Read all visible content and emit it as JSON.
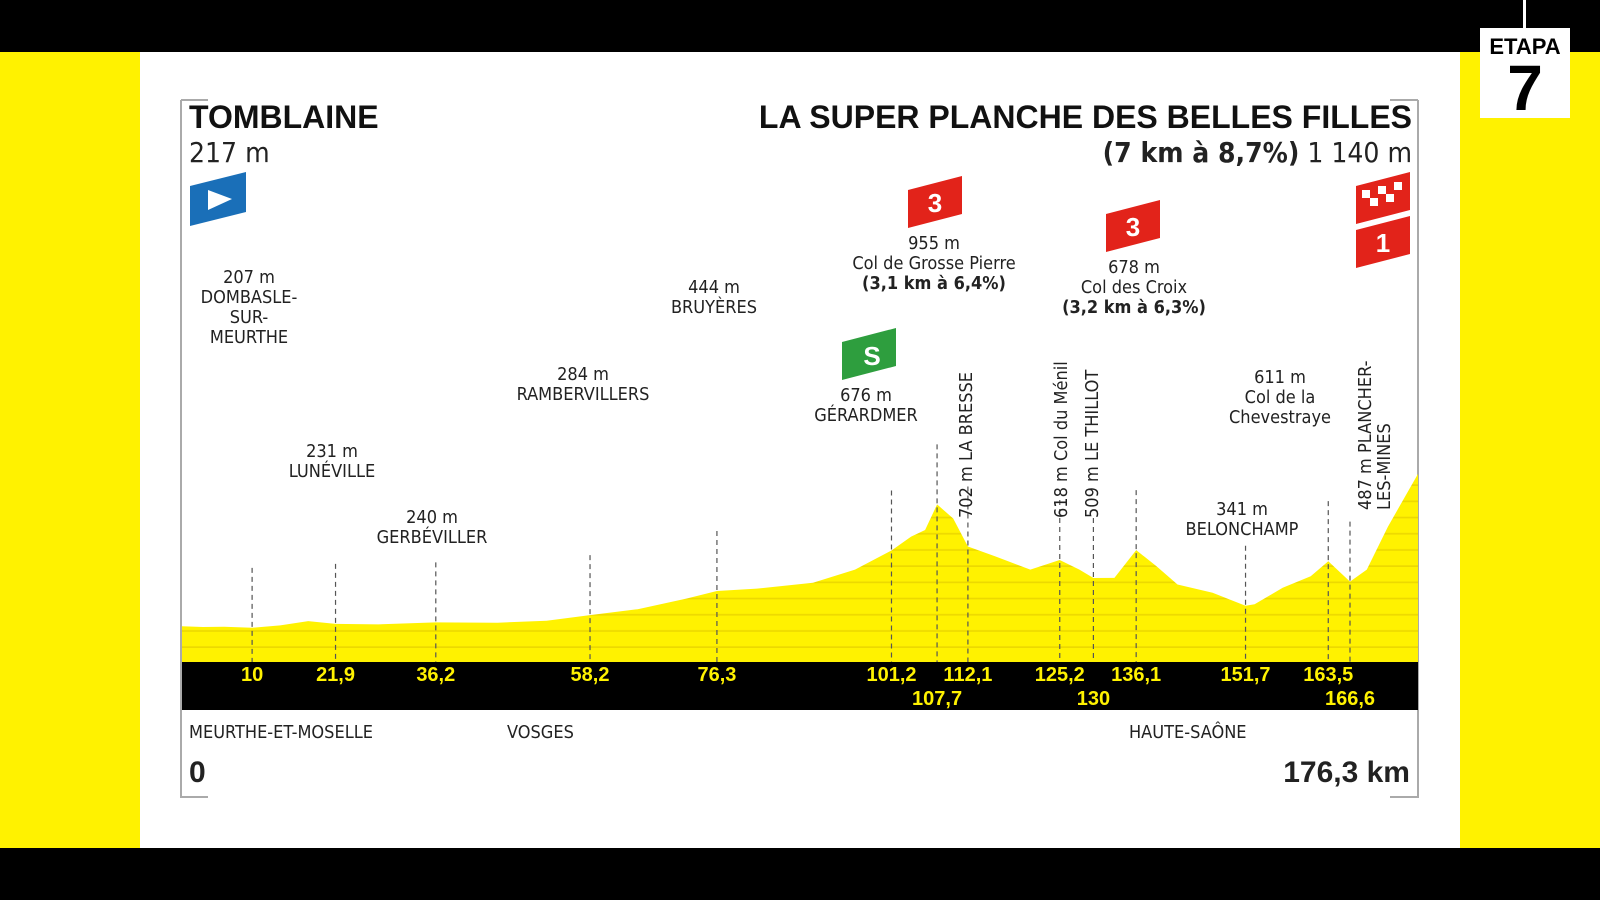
{
  "badge": {
    "label": "ETAPA",
    "number": "7"
  },
  "start": {
    "name": "TOMBLAINE",
    "elevation": "217 m"
  },
  "finish": {
    "name": "LA SUPER PLANCHE DES BELLES FILLES",
    "climb": "(7 km à 8,7%)",
    "elevation": "1 140 m"
  },
  "regions": [
    "MEURTHE-ET-MOSELLE",
    "VOSGES",
    "HAUTE-SAÔNE"
  ],
  "distance_start": "0",
  "distance_total": "176,3 km",
  "colors": {
    "profile": "#fff200",
    "sprint": "#2e9e3e",
    "kom": "#e2231a",
    "start_flag": "#1a6fb8"
  },
  "icons": {
    "start": "start-flag-icon",
    "sprint": "sprint-icon",
    "kom": "kom-cat-icon",
    "finish": "finish-flag-icon"
  },
  "markers": {
    "kom1": "3",
    "kom2": "3",
    "finish_cat": "1",
    "sprint": "S"
  },
  "labels": {
    "dombasle": {
      "elev": "207 m",
      "name": "DOMBASLE-\nSUR-\nMEURTHE"
    },
    "luneville": {
      "elev": "231 m",
      "name": "LUNÉVILLE"
    },
    "gerbeviller": {
      "elev": "240 m",
      "name": "GERBÉVILLER"
    },
    "rambervillers": {
      "elev": "284 m",
      "name": "RAMBERVILLERS"
    },
    "bruyeres": {
      "elev": "444 m",
      "name": "BRUYÈRES"
    },
    "gerardmer": {
      "elev": "676 m",
      "name": "GÉRARDMER"
    },
    "grossepierre": {
      "elev": "955 m",
      "name": "Col de Grosse Pierre",
      "climb": "(3,1 km à 6,4%)"
    },
    "labresse": {
      "text": "702 m LA BRESSE"
    },
    "menil": {
      "text": "618 m Col du Ménil"
    },
    "thillot": {
      "text": "509 m LE THILLOT"
    },
    "croix": {
      "elev": "678 m",
      "name": "Col des Croix",
      "climb": "(3,2 km à 6,3%)"
    },
    "belonchamp": {
      "elev": "341 m",
      "name": "BELONCHAMP"
    },
    "chevestraye": {
      "elev": "611 m",
      "name": "Col de la\nChevestraye"
    },
    "plancher": {
      "text": "487 m PLANCHER-\nLES-MINES"
    }
  },
  "chart_data": {
    "type": "area",
    "xlabel": "",
    "ylabel": "",
    "xlim": [
      0,
      176.3
    ],
    "km_ticks": [
      "10",
      "21,9",
      "36,2",
      "58,2",
      "76,3",
      "101,2",
      "107,7",
      "112,1",
      "125,2",
      "130",
      "136,1",
      "151,7",
      "163,5",
      "166,6"
    ],
    "km_values": [
      10,
      21.9,
      36.2,
      58.2,
      76.3,
      101.2,
      107.7,
      112.1,
      125.2,
      130,
      136.1,
      151.7,
      163.5,
      166.6
    ],
    "profile": [
      [
        0,
        217
      ],
      [
        3,
        212
      ],
      [
        6,
        214
      ],
      [
        10,
        207
      ],
      [
        14,
        222
      ],
      [
        18,
        248
      ],
      [
        21.9,
        231
      ],
      [
        28,
        228
      ],
      [
        36.2,
        240
      ],
      [
        45,
        238
      ],
      [
        52,
        250
      ],
      [
        58.2,
        284
      ],
      [
        65,
        320
      ],
      [
        72,
        385
      ],
      [
        76.3,
        430
      ],
      [
        82,
        445
      ],
      [
        90,
        480
      ],
      [
        96,
        560
      ],
      [
        101.2,
        676
      ],
      [
        104,
        760
      ],
      [
        106,
        800
      ],
      [
        107.7,
        955
      ],
      [
        110,
        870
      ],
      [
        112.1,
        700
      ],
      [
        116,
        640
      ],
      [
        121,
        560
      ],
      [
        125.2,
        618
      ],
      [
        128,
        560
      ],
      [
        130,
        509
      ],
      [
        133,
        510
      ],
      [
        136.1,
        678
      ],
      [
        139,
        580
      ],
      [
        142,
        470
      ],
      [
        147,
        420
      ],
      [
        151.7,
        341
      ],
      [
        153,
        350
      ],
      [
        157,
        450
      ],
      [
        161,
        520
      ],
      [
        163.5,
        611
      ],
      [
        166.6,
        487
      ],
      [
        169,
        560
      ],
      [
        172,
        820
      ],
      [
        176.3,
        1140
      ]
    ]
  }
}
